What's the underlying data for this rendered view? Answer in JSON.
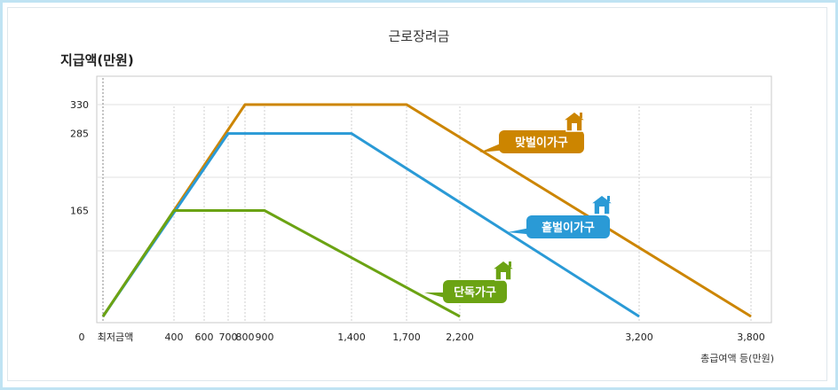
{
  "chart_data": {
    "type": "line",
    "title": "근로장려금",
    "ylabel": "지급액(만원)",
    "xlabel": "총급여액 등(만원)",
    "x_ticks": [
      {
        "value": 0,
        "label": "0"
      },
      {
        "value": 100,
        "label": "최저금액"
      },
      {
        "value": 400,
        "label": "400"
      },
      {
        "value": 600,
        "label": "600"
      },
      {
        "value": 700,
        "label": "700"
      },
      {
        "value": 800,
        "label": "800"
      },
      {
        "value": 900,
        "label": "900"
      },
      {
        "value": 1400,
        "label": "1,400"
      },
      {
        "value": 1700,
        "label": "1,700"
      },
      {
        "value": 2200,
        "label": "2,200"
      },
      {
        "value": 3200,
        "label": "3,200"
      },
      {
        "value": 3800,
        "label": "3,800"
      }
    ],
    "y_ticks": [
      {
        "value": 165,
        "label": "165"
      },
      {
        "value": 285,
        "label": "285"
      },
      {
        "value": 330,
        "label": "330"
      }
    ],
    "ylim": [
      0,
      330
    ],
    "grid": true,
    "series": [
      {
        "name": "맞벌이가구",
        "color": "#cc8500",
        "icon": "house-icon",
        "points": [
          [
            100,
            0
          ],
          [
            800,
            330
          ],
          [
            1700,
            330
          ],
          [
            3800,
            0
          ]
        ]
      },
      {
        "name": "홑벌이가구",
        "color": "#2a9ad6",
        "icon": "house-icon",
        "points": [
          [
            100,
            0
          ],
          [
            700,
            285
          ],
          [
            1400,
            285
          ],
          [
            3200,
            0
          ]
        ]
      },
      {
        "name": "단독가구",
        "color": "#6ba313",
        "icon": "house-icon",
        "points": [
          [
            100,
            0
          ],
          [
            400,
            165
          ],
          [
            900,
            165
          ],
          [
            2200,
            0
          ]
        ]
      }
    ]
  }
}
